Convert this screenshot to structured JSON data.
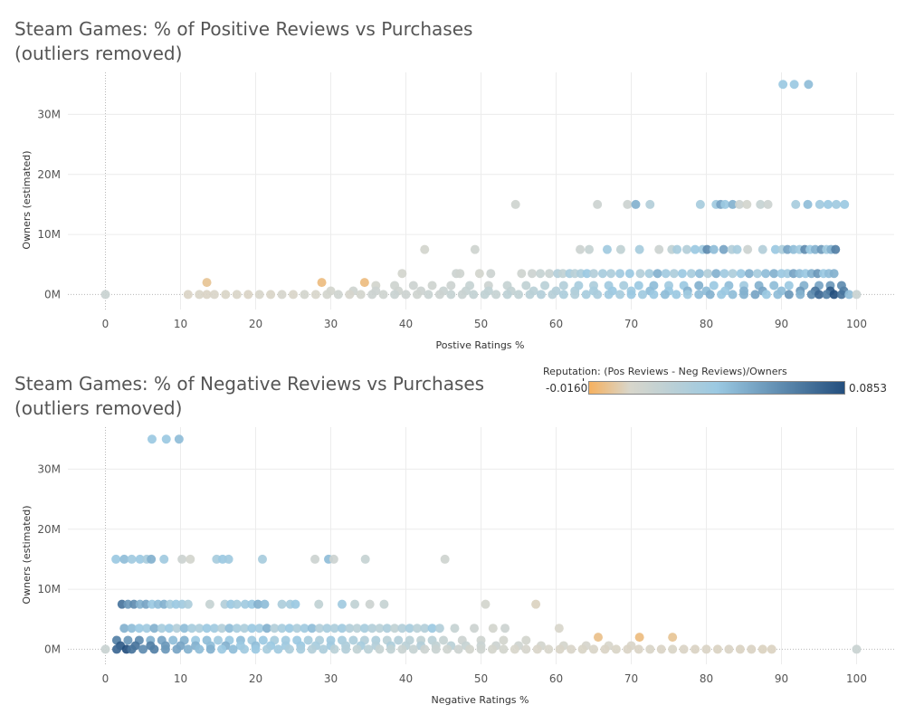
{
  "colors": {
    "neg": "#f6b15f",
    "neutral": "#d8d6cb",
    "mid": "#9bc9e2",
    "pos": "#244f7e",
    "grid": "#ececec",
    "zero": "#b8b8b8",
    "text": "#555555"
  },
  "legend": {
    "title": "Reputation: (Pos Reviews - Neg Reviews)/Owners",
    "min_label": "-0.0160",
    "max_label": "0.0853",
    "min": -0.016,
    "max": 0.0853
  },
  "charts": [
    {
      "title_line1": "Steam Games: % of Positive Reviews vs Purchases",
      "title_line2": "(outliers removed)",
      "xlabel": "Postive Ratings %",
      "ylabel": "Owners (estimated)"
    },
    {
      "title_line1": "Steam Games: % of Negative Reviews vs Purchases",
      "title_line2": "(outliers removed)",
      "xlabel": "Negative Ratings %",
      "ylabel": "Owners (estimated)"
    }
  ],
  "chart_data": [
    {
      "type": "scatter",
      "title": "Steam Games: % of Positive Reviews vs Purchases (outliers removed)",
      "xlabel": "Postive Ratings %",
      "ylabel": "Owners (estimated)",
      "xlim": [
        -5,
        105
      ],
      "ylim": [
        -2.5,
        37
      ],
      "xticks": [
        "0",
        "10",
        "20",
        "30",
        "40",
        "50",
        "60",
        "70",
        "80",
        "90",
        "100"
      ],
      "yticks": [
        "0M",
        "10M",
        "20M",
        "30M"
      ],
      "ytick_values": [
        0,
        10,
        20,
        30
      ],
      "color_by": "Reputation: (Pos Reviews - Neg Reviews)/Owners",
      "grid": true,
      "clusters": [
        {
          "y": 35,
          "x": [
            90.2,
            91.7,
            93.6
          ],
          "c": [
            0.5,
            0.5,
            0.55
          ]
        },
        {
          "y": 15,
          "x": [
            54.6,
            65.5,
            69.5,
            70.6,
            72.5,
            79.2,
            81.3,
            81.9,
            82.5,
            83.5,
            84.4,
            85.4,
            87.2,
            88.2,
            91.9,
            93.5,
            95.1,
            96.2,
            97.3,
            98.4
          ],
          "c": [
            0.08,
            0.1,
            0.1,
            0.6,
            0.3,
            0.4,
            0.45,
            0.65,
            0.5,
            0.6,
            0.1,
            0.05,
            0.15,
            0.1,
            0.4,
            0.55,
            0.45,
            0.5,
            0.45,
            0.5
          ]
        },
        {
          "y": 7.5,
          "x": [
            42.5,
            49.2,
            63.2,
            64.4,
            66.8,
            68.6,
            71.1,
            73.7,
            75.4,
            76.1,
            77.4,
            78.5,
            79.5,
            80.1,
            81,
            82.3,
            83.4,
            84.1,
            85.5,
            87.5,
            89.2,
            90.1,
            90.8,
            91.6,
            92.4,
            93.1,
            93.8,
            94.5,
            95.3,
            96,
            96.6,
            97.2
          ],
          "c": [
            0.05,
            0.08,
            0.1,
            0.15,
            0.45,
            0.2,
            0.4,
            0.1,
            0.2,
            0.4,
            0.3,
            0.5,
            0.45,
            0.75,
            0.55,
            0.65,
            0.3,
            0.4,
            0.1,
            0.3,
            0.5,
            0.35,
            0.65,
            0.55,
            0.45,
            0.75,
            0.5,
            0.6,
            0.7,
            0.45,
            0.6,
            0.8
          ]
        },
        {
          "y": 3.5,
          "x": [
            39.5,
            46.7,
            47.2,
            49.8,
            51.3,
            55.4,
            56.8,
            57.9,
            59.1,
            60.2,
            60.9,
            61.8,
            62.5,
            63.3,
            64.1,
            65,
            66.2,
            67.3,
            68.5,
            69.8,
            71.2,
            72.4,
            73.5,
            74.6,
            75.7,
            76.8,
            78,
            79.1,
            80.2,
            81.3,
            82.4,
            83.5,
            84.6,
            85.7,
            86.8,
            87.9,
            89,
            90,
            90.8,
            91.6,
            92.4,
            93.2,
            94,
            94.8,
            95.6,
            96.3,
            97
          ],
          "c": [
            0.05,
            0.1,
            0.08,
            0.05,
            0.1,
            0.08,
            0.1,
            0.15,
            0.12,
            0.3,
            0.2,
            0.4,
            0.25,
            0.35,
            0.5,
            0.3,
            0.4,
            0.35,
            0.45,
            0.5,
            0.3,
            0.4,
            0.6,
            0.45,
            0.35,
            0.5,
            0.4,
            0.55,
            0.3,
            0.6,
            0.45,
            0.35,
            0.5,
            0.6,
            0.4,
            0.55,
            0.6,
            0.5,
            0.45,
            0.65,
            0.55,
            0.5,
            0.6,
            0.7,
            0.5,
            0.55,
            0.6
          ]
        },
        {
          "y": 1.5,
          "x": [
            36,
            38.5,
            41,
            43.5,
            46,
            48.5,
            51,
            53.5,
            56,
            58.5,
            61,
            63,
            65,
            67,
            69,
            71,
            73,
            75,
            77,
            79,
            81,
            83,
            85,
            87,
            89,
            91,
            93,
            95,
            96.5,
            98
          ],
          "c": [
            0.05,
            0.08,
            0.1,
            0.08,
            0.1,
            0.15,
            0.1,
            0.15,
            0.2,
            0.25,
            0.3,
            0.4,
            0.35,
            0.45,
            0.4,
            0.5,
            0.55,
            0.45,
            0.5,
            0.6,
            0.5,
            0.55,
            0.45,
            0.6,
            0.55,
            0.5,
            0.6,
            0.65,
            0.7,
            0.75
          ]
        },
        {
          "y": 0.6,
          "x": [
            30,
            33,
            36,
            39,
            42,
            45,
            48,
            51,
            54,
            57,
            60,
            62.5,
            65,
            67.5,
            70,
            72.5,
            75,
            77.5,
            80,
            82.5,
            85,
            87.5,
            90,
            92.5,
            94.5,
            96.5,
            98.3
          ],
          "c": [
            0.05,
            0.08,
            0.1,
            0.08,
            0.1,
            0.12,
            0.15,
            0.2,
            0.18,
            0.25,
            0.3,
            0.35,
            0.4,
            0.5,
            0.45,
            0.55,
            0.5,
            0.6,
            0.55,
            0.5,
            0.6,
            0.65,
            0.55,
            0.7,
            0.85,
            0.95,
            0.8
          ]
        },
        {
          "y": 0,
          "x": [
            0,
            11,
            12.5,
            13.5,
            14.5,
            16,
            17.5,
            19,
            20.5,
            22,
            23.5,
            25,
            26.5,
            28,
            29.5,
            31,
            32.5,
            34,
            35.5,
            37,
            38.5,
            40,
            41.5,
            43,
            44.5,
            46,
            47.5,
            49,
            50.5,
            52,
            53.5,
            55,
            56.5,
            58,
            59.5,
            61,
            62.5,
            64,
            65.5,
            67,
            68.5,
            70,
            71.5,
            73,
            74.5,
            76,
            77.5,
            79,
            80.5,
            82,
            83.5,
            85,
            86.5,
            88,
            89.5,
            91,
            92.5,
            94,
            95,
            96,
            97,
            98,
            99,
            100
          ],
          "c": [
            0.12,
            -0.05,
            -0.03,
            -0.06,
            -0.02,
            -0.04,
            -0.03,
            -0.05,
            0.0,
            -0.03,
            0.02,
            -0.02,
            0.05,
            0.0,
            0.05,
            0.08,
            0.02,
            0.05,
            0.1,
            0.08,
            0.12,
            0.1,
            0.08,
            0.12,
            0.1,
            0.15,
            0.12,
            0.18,
            0.2,
            0.15,
            0.22,
            0.2,
            0.25,
            0.3,
            0.28,
            0.35,
            0.3,
            0.4,
            0.38,
            0.45,
            0.4,
            0.5,
            0.45,
            0.5,
            0.55,
            0.5,
            0.45,
            0.55,
            0.6,
            0.5,
            0.55,
            0.6,
            0.65,
            0.5,
            0.55,
            0.7,
            0.6,
            0.75,
            0.9,
            0.8,
            1.0,
            0.85,
            0.55,
            0.12
          ]
        },
        {
          "y": 2.0,
          "x": [
            13.5,
            28.8,
            34.5
          ],
          "c": [
            -0.5,
            -0.7,
            -0.7
          ]
        }
      ]
    },
    {
      "type": "scatter",
      "title": "Steam Games: % of Negative Reviews vs Purchases (outliers removed)",
      "xlabel": "Negative Ratings %",
      "ylabel": "Owners (estimated)",
      "xlim": [
        -5,
        105
      ],
      "ylim": [
        -2.5,
        37
      ],
      "xticks": [
        "0",
        "10",
        "20",
        "30",
        "40",
        "50",
        "60",
        "70",
        "80",
        "90",
        "100"
      ],
      "yticks": [
        "0M",
        "10M",
        "20M",
        "30M"
      ],
      "ytick_values": [
        0,
        10,
        20,
        30
      ],
      "color_by": "Reputation: (Pos Reviews - Neg Reviews)/Owners",
      "grid": true,
      "clusters": [
        {
          "y": 35,
          "x": [
            6.2,
            8.1,
            9.8
          ],
          "c": [
            0.5,
            0.5,
            0.55
          ]
        },
        {
          "y": 15,
          "x": [
            1.4,
            2.5,
            3.5,
            4.6,
            5.5,
            6.1,
            7.8,
            10.2,
            11.3,
            14.8,
            15.6,
            16.4,
            20.9,
            27.9,
            29.7,
            30.4,
            34.6,
            45.2
          ],
          "c": [
            0.5,
            0.55,
            0.45,
            0.5,
            0.4,
            0.6,
            0.45,
            0.1,
            0.05,
            0.4,
            0.5,
            0.45,
            0.4,
            0.1,
            0.55,
            0.1,
            0.15,
            0.08
          ]
        },
        {
          "y": 7.5,
          "x": [
            2.2,
            3.0,
            3.8,
            4.6,
            5.4,
            6.2,
            7.0,
            7.8,
            8.6,
            9.4,
            10.2,
            11.0,
            13.9,
            15.9,
            16.7,
            17.5,
            18.6,
            19.5,
            20.3,
            21.2,
            23.5,
            24.6,
            25.3,
            28.4,
            31.5,
            33.2,
            35.2,
            37.1,
            50.6,
            57.3
          ],
          "c": [
            0.85,
            0.7,
            0.75,
            0.6,
            0.65,
            0.5,
            0.55,
            0.6,
            0.4,
            0.5,
            0.45,
            0.35,
            0.15,
            0.3,
            0.5,
            0.4,
            0.45,
            0.5,
            0.6,
            0.55,
            0.35,
            0.4,
            0.5,
            0.2,
            0.45,
            0.2,
            0.1,
            0.15,
            0.05,
            -0.1
          ]
        },
        {
          "y": 3.5,
          "x": [
            2.5,
            3.5,
            4.5,
            5.5,
            6.5,
            7.5,
            8.5,
            9.5,
            10.5,
            11.5,
            12.5,
            13.5,
            14.5,
            15.5,
            16.5,
            17.5,
            18.5,
            19.5,
            20.5,
            21.5,
            22.5,
            23.5,
            24.5,
            25.5,
            26.5,
            27.5,
            28.5,
            29.5,
            30.5,
            31.5,
            32.5,
            33.5,
            34.5,
            35.5,
            36.5,
            37.5,
            38.5,
            39.5,
            40.5,
            41.5,
            42.5,
            43.5,
            44.5,
            46.5,
            49.1,
            51.6,
            53.2,
            60.4
          ],
          "c": [
            0.6,
            0.55,
            0.5,
            0.45,
            0.6,
            0.4,
            0.5,
            0.3,
            0.55,
            0.4,
            0.35,
            0.5,
            0.45,
            0.3,
            0.55,
            0.4,
            0.35,
            0.5,
            0.45,
            0.6,
            0.3,
            0.4,
            0.5,
            0.35,
            0.45,
            0.55,
            0.3,
            0.4,
            0.35,
            0.45,
            0.3,
            0.25,
            0.4,
            0.3,
            0.25,
            0.35,
            0.2,
            0.3,
            0.4,
            0.25,
            0.3,
            0.5,
            0.3,
            0.15,
            0.1,
            0.05,
            0.1,
            0.0
          ]
        },
        {
          "y": 1.5,
          "x": [
            1.5,
            3,
            4.5,
            6,
            7.5,
            9,
            10.5,
            12,
            13.5,
            15,
            16.5,
            18,
            19.5,
            21,
            22.5,
            24,
            25.5,
            27,
            28.5,
            30,
            31.5,
            33,
            34.5,
            36,
            37.5,
            39,
            40.5,
            42,
            43.5,
            45,
            47.5,
            50,
            53,
            56
          ],
          "c": [
            0.8,
            0.7,
            0.75,
            0.6,
            0.65,
            0.55,
            0.6,
            0.5,
            0.55,
            0.45,
            0.5,
            0.55,
            0.45,
            0.5,
            0.4,
            0.45,
            0.5,
            0.4,
            0.35,
            0.45,
            0.4,
            0.35,
            0.3,
            0.35,
            0.25,
            0.3,
            0.25,
            0.2,
            0.25,
            0.15,
            0.1,
            0.08,
            0.05,
            0.05
          ]
        },
        {
          "y": 0.6,
          "x": [
            2,
            4,
            6,
            8,
            10,
            12,
            14,
            16,
            18,
            20,
            22,
            24,
            26,
            28,
            30,
            32,
            34,
            36,
            38,
            40,
            42,
            44,
            46,
            48,
            50,
            52,
            55,
            58,
            61,
            64,
            67,
            70
          ],
          "c": [
            0.95,
            0.85,
            0.8,
            0.7,
            0.65,
            0.6,
            0.55,
            0.6,
            0.5,
            0.55,
            0.5,
            0.45,
            0.5,
            0.4,
            0.45,
            0.35,
            0.4,
            0.3,
            0.35,
            0.25,
            0.3,
            0.2,
            0.25,
            0.15,
            0.12,
            0.1,
            0.08,
            0.05,
            0.03,
            0.02,
            0.0,
            -0.02
          ]
        },
        {
          "y": 0,
          "x": [
            0,
            1.5,
            2.8,
            3.5,
            5,
            6.5,
            8,
            9.5,
            11,
            12.5,
            14,
            15.5,
            17,
            18.5,
            20,
            21.5,
            23,
            24.5,
            26,
            27.5,
            29,
            30.5,
            32,
            33.5,
            35,
            36.5,
            38,
            39.5,
            41,
            42.5,
            44,
            45.5,
            47,
            48.5,
            50,
            51.5,
            53,
            54.5,
            56,
            57.5,
            59,
            60.5,
            62,
            63.5,
            65,
            66.5,
            68,
            69.5,
            71,
            72.5,
            74,
            75.5,
            77,
            78.5,
            80,
            81.5,
            83,
            84.5,
            86,
            87.5,
            88.7,
            100
          ],
          "c": [
            0.12,
            0.9,
            1.0,
            0.85,
            0.75,
            0.8,
            0.7,
            0.65,
            0.6,
            0.55,
            0.6,
            0.5,
            0.55,
            0.45,
            0.5,
            0.4,
            0.45,
            0.35,
            0.4,
            0.3,
            0.35,
            0.25,
            0.3,
            0.2,
            0.25,
            0.15,
            0.2,
            0.12,
            0.15,
            0.1,
            0.12,
            0.08,
            0.1,
            0.05,
            0.08,
            0.03,
            0.05,
            0.0,
            0.02,
            -0.02,
            0.0,
            -0.03,
            -0.02,
            -0.04,
            -0.03,
            -0.05,
            -0.04,
            -0.06,
            -0.05,
            -0.03,
            -0.06,
            -0.04,
            -0.05,
            -0.07,
            -0.05,
            -0.08,
            -0.06,
            -0.08,
            -0.07,
            -0.1,
            -0.09,
            0.12
          ]
        },
        {
          "y": 2.0,
          "x": [
            65.6,
            71.1,
            75.5
          ],
          "c": [
            -0.6,
            -0.7,
            -0.5
          ]
        }
      ]
    }
  ]
}
